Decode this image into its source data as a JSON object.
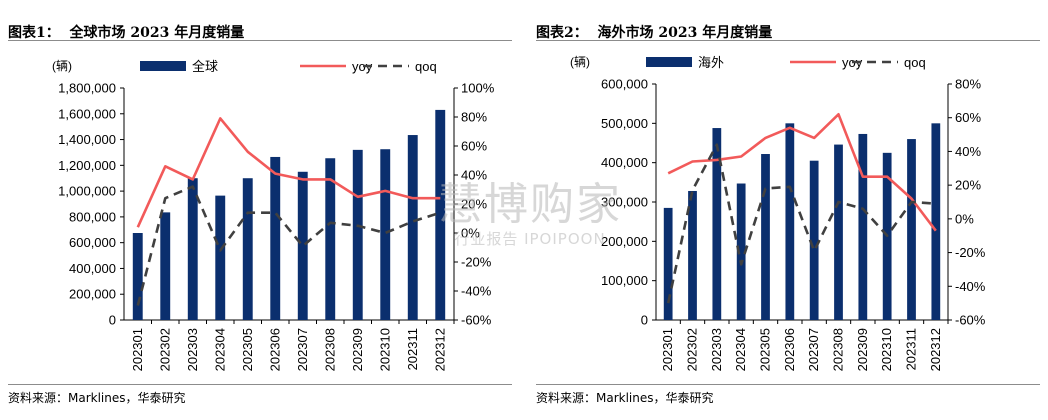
{
  "watermark": {
    "line1": "慧博购家",
    "line2": "行业报告 IPOIPOON"
  },
  "chart_data": [
    {
      "type": "bar",
      "title": "图表1：  全球市场 2023 年月度销量",
      "source": "资料来源：Marklines，华泰研究",
      "unit_label": "(辆)",
      "categories": [
        "202301",
        "202302",
        "202303",
        "202304",
        "202305",
        "202306",
        "202307",
        "202308",
        "202309",
        "202310",
        "202311",
        "202312"
      ],
      "series": [
        {
          "name": "全球",
          "kind": "bar",
          "axis": "left",
          "color": "#0b2f6e",
          "values": [
            675000,
            835000,
            1100000,
            965000,
            1100000,
            1265000,
            1150000,
            1255000,
            1320000,
            1325000,
            1435000,
            1630000
          ]
        },
        {
          "name": "yoy",
          "kind": "line",
          "axis": "right",
          "color": "#f25a5a",
          "dash": false,
          "values": [
            4,
            46,
            37,
            79,
            56,
            41,
            37,
            37,
            25,
            29,
            24,
            24
          ]
        },
        {
          "name": "qoq",
          "kind": "line",
          "axis": "right",
          "color": "#404040",
          "dash": true,
          "values": [
            -50,
            24,
            32,
            -12,
            14,
            14,
            -9,
            7,
            5,
            0,
            8,
            14
          ]
        }
      ],
      "ylim_left": [
        0,
        1800000
      ],
      "yticks_left": [
        "0",
        "200,000",
        "400,000",
        "600,000",
        "800,000",
        "1,000,000",
        "1,200,000",
        "1,400,000",
        "1,600,000",
        "1,800,000"
      ],
      "ylim_right": [
        -60,
        100
      ],
      "yticks_right": [
        "-60%",
        "-40%",
        "-20%",
        "0%",
        "20%",
        "40%",
        "60%",
        "80%",
        "100%"
      ],
      "legend_position": "top",
      "grid": false
    },
    {
      "type": "bar",
      "title": "图表2：  海外市场 2023 年月度销量",
      "source": "资料来源：Marklines，华泰研究",
      "unit_label": "(辆)",
      "categories": [
        "202301",
        "202302",
        "202303",
        "202304",
        "202305",
        "202306",
        "202307",
        "202308",
        "202309",
        "202310",
        "202311",
        "202312"
      ],
      "series": [
        {
          "name": "海外",
          "kind": "bar",
          "axis": "left",
          "color": "#0b2f6e",
          "values": [
            285000,
            328000,
            488000,
            347000,
            422000,
            500000,
            405000,
            446000,
            473000,
            425000,
            460000,
            500000
          ]
        },
        {
          "name": "yoy",
          "kind": "line",
          "axis": "right",
          "color": "#f25a5a",
          "dash": false,
          "values": [
            27,
            34,
            35,
            37,
            48,
            54,
            48,
            62,
            25,
            25,
            12,
            -7
          ]
        },
        {
          "name": "qoq",
          "kind": "line",
          "axis": "right",
          "color": "#404040",
          "dash": true,
          "values": [
            -50,
            17,
            44,
            -27,
            18,
            19,
            -19,
            10,
            6,
            -10,
            10,
            9
          ]
        }
      ],
      "ylim_left": [
        0,
        600000
      ],
      "yticks_left": [
        "0",
        "100,000",
        "200,000",
        "300,000",
        "400,000",
        "500,000",
        "600,000"
      ],
      "ylim_right": [
        -60,
        80
      ],
      "yticks_right": [
        "-60%",
        "-40%",
        "-20%",
        "0%",
        "20%",
        "40%",
        "60%",
        "80%"
      ],
      "legend_position": "top",
      "grid": false
    }
  ]
}
